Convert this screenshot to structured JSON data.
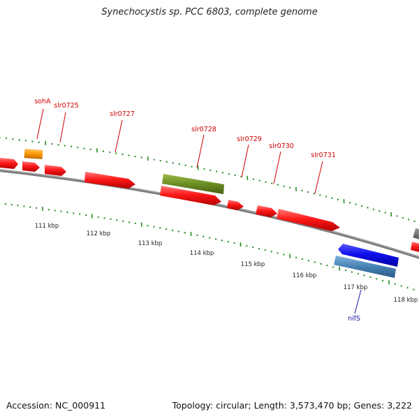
{
  "title": "Synechocystis sp. PCC 6803, complete genome",
  "footer": {
    "accession": "Accession: NC_000911",
    "summary": "Topology: circular; Length: 3,573,470 bp; Genes: 3,222"
  },
  "colors": {
    "backbone": "#7f7f7f",
    "forward_gene": "#ff0000",
    "reverse_gene": "#0000ee",
    "orange_feature": "#ff9900",
    "olive_feature": "#6b8e23",
    "steelblue_feature": "#4682b4",
    "tick": "#228b22",
    "gene_label": "#cc0000",
    "blue_label": "#1a1aa6"
  },
  "scale_labels": [
    "111 kbp",
    "112 kbp",
    "113 kbp",
    "114 kbp",
    "115 kbp",
    "116 kbp",
    "117 kbp",
    "118 kbp"
  ],
  "gene_labels": [
    "sohA",
    "slr0725",
    "slr0727",
    "slr0728",
    "slr0729",
    "slr0730",
    "slr0731",
    "nifS"
  ]
}
